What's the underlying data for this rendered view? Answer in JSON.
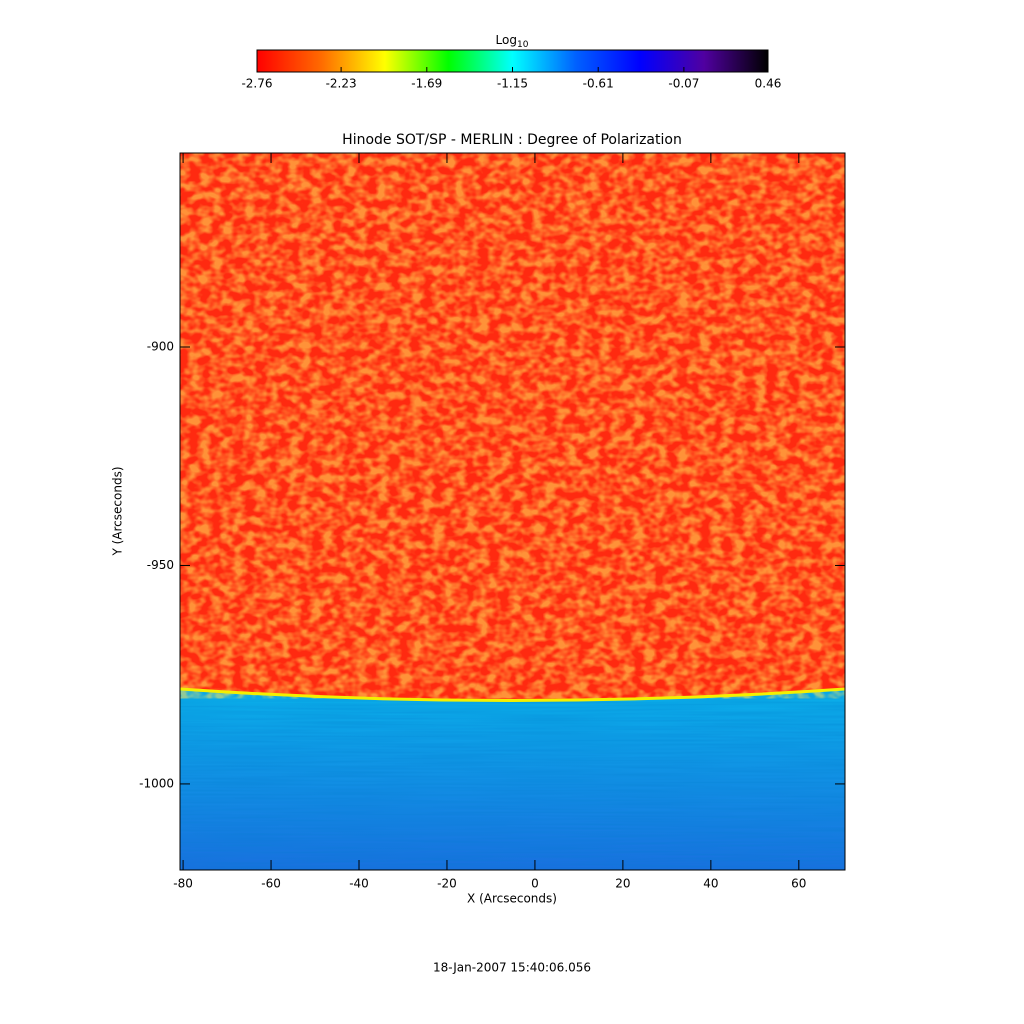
{
  "chart_data": {
    "type": "heatmap",
    "title": "Hinode SOT/SP - MERLIN : Degree of Polarization",
    "x_label": "X (Arcseconds)",
    "y_label": "Y (Arcseconds)",
    "xlim": [
      -80.7,
      70.5
    ],
    "xticks": [
      -80,
      -60,
      -40,
      -20,
      0,
      20,
      40,
      60
    ],
    "ylim": [
      -1019.7,
      -855.6
    ],
    "yticks": [
      -1000,
      -950,
      -900
    ],
    "colorbar": {
      "label": "Log",
      "label_subscript": "10",
      "range": [
        -2.76,
        0.46
      ],
      "ticks": [
        -2.76,
        -2.23,
        -1.69,
        -1.15,
        -0.61,
        -0.07,
        0.46
      ],
      "colors": [
        "#ff0000",
        "#ff6a00",
        "#ffff00",
        "#00ff00",
        "#00ffff",
        "#0060ff",
        "#0000ff",
        "#5000a0",
        "#000000"
      ]
    }
  },
  "footer": "18-Jan-2007 15:40:06.056"
}
